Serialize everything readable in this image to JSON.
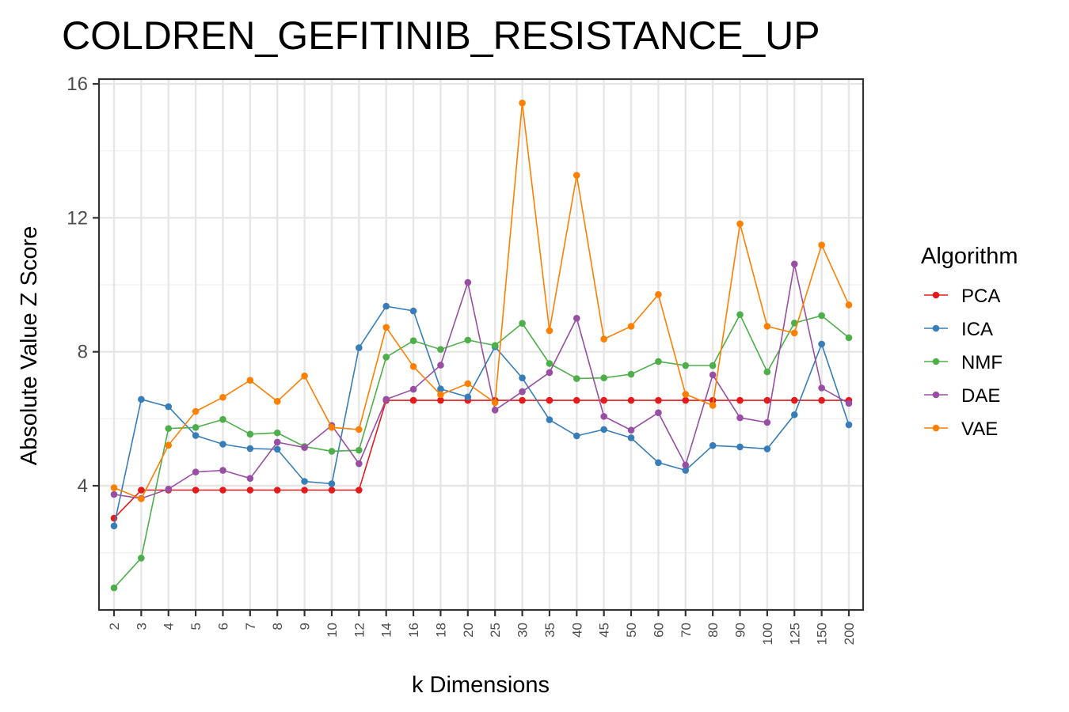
{
  "chart_data": {
    "type": "line",
    "title": "COLDREN_GEFITINIB_RESISTANCE_UP",
    "xlabel": "k Dimensions",
    "ylabel": "Absolute Value Z Score",
    "x": [
      "2",
      "3",
      "4",
      "5",
      "6",
      "7",
      "8",
      "9",
      "10",
      "12",
      "14",
      "16",
      "18",
      "20",
      "25",
      "30",
      "35",
      "40",
      "45",
      "50",
      "60",
      "70",
      "80",
      "90",
      "100",
      "125",
      "150",
      "200"
    ],
    "yticks": [
      4,
      8,
      12,
      16
    ],
    "ylim": [
      0.3,
      16.1
    ],
    "grid": true,
    "legend": {
      "title": "Algorithm",
      "position": "right"
    },
    "series": [
      {
        "name": "PCA",
        "color": "#e41a1c",
        "values": [
          3.03,
          3.87,
          3.87,
          3.87,
          3.87,
          3.87,
          3.87,
          3.87,
          3.87,
          3.87,
          6.55,
          6.55,
          6.55,
          6.55,
          6.55,
          6.55,
          6.55,
          6.55,
          6.55,
          6.55,
          6.55,
          6.55,
          6.55,
          6.55,
          6.55,
          6.55,
          6.55,
          6.55
        ]
      },
      {
        "name": "ICA",
        "color": "#377eb8",
        "values": [
          2.8,
          6.58,
          6.36,
          5.5,
          5.24,
          5.11,
          5.09,
          4.13,
          4.06,
          8.12,
          9.36,
          9.22,
          6.89,
          6.65,
          8.15,
          7.22,
          5.97,
          5.49,
          5.68,
          5.43,
          4.69,
          4.46,
          5.2,
          5.16,
          5.1,
          6.12,
          8.23,
          5.82
        ]
      },
      {
        "name": "NMF",
        "color": "#4daf4a",
        "values": [
          0.95,
          1.84,
          5.71,
          5.74,
          5.98,
          5.54,
          5.58,
          5.17,
          5.03,
          5.06,
          7.84,
          8.33,
          8.07,
          8.35,
          8.19,
          8.85,
          7.65,
          7.2,
          7.22,
          7.33,
          7.71,
          7.59,
          7.59,
          9.11,
          7.4,
          8.86,
          9.08,
          8.42
        ]
      },
      {
        "name": "DAE",
        "color": "#984ea3",
        "values": [
          3.74,
          3.62,
          3.9,
          4.41,
          4.46,
          4.22,
          5.3,
          5.14,
          5.8,
          4.66,
          6.58,
          6.88,
          7.6,
          10.07,
          6.26,
          6.81,
          7.38,
          9.0,
          6.07,
          5.66,
          6.18,
          4.62,
          7.31,
          6.03,
          5.89,
          10.62,
          6.92,
          6.46
        ]
      },
      {
        "name": "VAE",
        "color": "#ff7f00",
        "values": [
          3.94,
          3.61,
          5.21,
          6.22,
          6.64,
          7.15,
          6.52,
          7.28,
          5.74,
          5.68,
          8.73,
          7.56,
          6.72,
          7.05,
          6.48,
          15.43,
          8.63,
          13.27,
          8.38,
          8.76,
          9.71,
          6.73,
          6.4,
          11.82,
          8.76,
          8.56,
          11.19,
          9.4
        ]
      }
    ]
  }
}
